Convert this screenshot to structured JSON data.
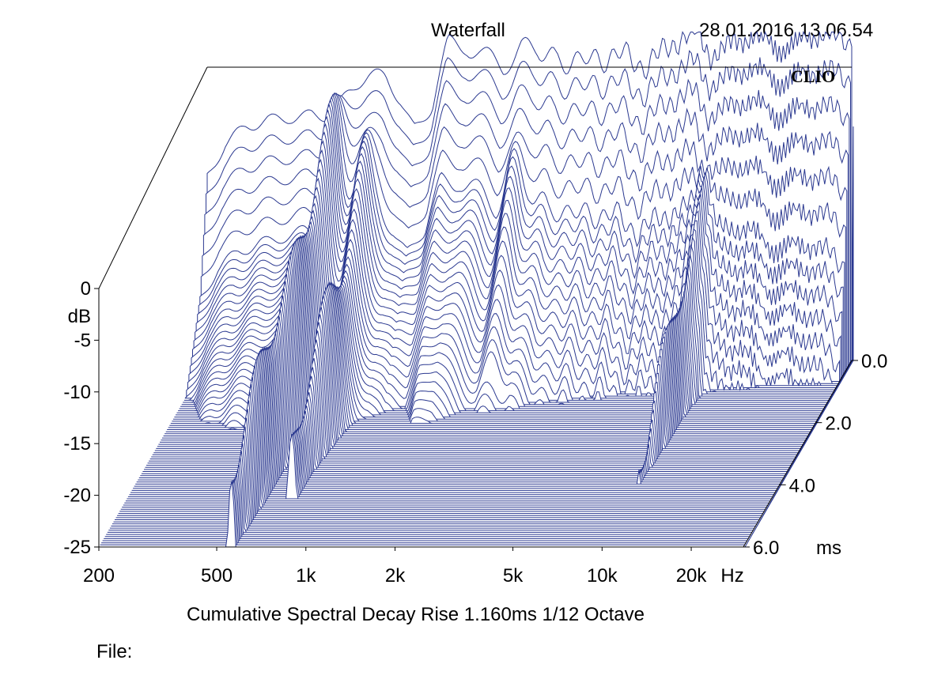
{
  "header": {
    "title": "Waterfall",
    "timestamp": "28.01.2016 13.06.54"
  },
  "footer": {
    "caption": "Cumulative Spectral Decay   Rise 1.160ms   1/12 Octave",
    "file_label": "File:"
  },
  "logo": "CLIO",
  "colors": {
    "trace": "#2b3990",
    "fill": "#2b3990",
    "paper": "#ffffff",
    "axis": "#000000"
  },
  "chart_data": {
    "type": "waterfall",
    "title": "Waterfall",
    "subtitle": "Cumulative Spectral Decay",
    "rise_ms": 1.16,
    "smoothing": "1/12 Octave",
    "x_axis": {
      "label": "Hz",
      "scale": "log",
      "range": [
        200,
        30000
      ],
      "ticks": [
        {
          "value": 200,
          "label": "200"
        },
        {
          "value": 500,
          "label": "500"
        },
        {
          "value": 1000,
          "label": "1k"
        },
        {
          "value": 2000,
          "label": "2k"
        },
        {
          "value": 5000,
          "label": "5k"
        },
        {
          "value": 10000,
          "label": "10k"
        },
        {
          "value": 20000,
          "label": "20k"
        }
      ]
    },
    "y_axis": {
      "label": "dB",
      "range": [
        -25,
        0
      ],
      "ticks": [
        {
          "value": 0,
          "label": "0"
        },
        {
          "value": -5,
          "label": "-5"
        },
        {
          "value": -10,
          "label": "-10"
        },
        {
          "value": -15,
          "label": "-15"
        },
        {
          "value": -20,
          "label": "-20"
        },
        {
          "value": -25,
          "label": "-25"
        }
      ]
    },
    "z_axis": {
      "label": "ms",
      "range": [
        0,
        6
      ],
      "ticks": [
        {
          "value": 0,
          "label": "0.0"
        },
        {
          "value": 2,
          "label": "2.0"
        },
        {
          "value": 4,
          "label": "4.0"
        },
        {
          "value": 6,
          "label": "6.0"
        }
      ]
    },
    "slice_count": 90,
    "initial_response": {
      "freq_hz": [
        200,
        230,
        270,
        320,
        380,
        450,
        520,
        600,
        700,
        800,
        900,
        1000,
        1150,
        1300,
        1500,
        1700,
        2000,
        2300,
        2600,
        3000,
        3500,
        4000,
        5000,
        6000,
        7000,
        8000,
        9000,
        10000,
        12000,
        14000,
        17000,
        20000,
        24000,
        30000
      ],
      "db": [
        -10,
        -7,
        -5.2,
        -4.2,
        -3.6,
        -3.3,
        -3.8,
        -2.5,
        -1.5,
        -1.2,
        -2.5,
        -4.5,
        -3.5,
        1.5,
        2.2,
        1.0,
        0.0,
        1.5,
        2.0,
        0.2,
        0.8,
        0.5,
        1.2,
        0.0,
        1.5,
        2.5,
        3.0,
        1.0,
        2.0,
        2.8,
        1.5,
        2.2,
        3.0,
        2.0
      ]
    },
    "decay_resonances": [
      {
        "freq_hz": 560,
        "level_db": -3,
        "persist_ms": 6
      },
      {
        "freq_hz": 720,
        "level_db": -6,
        "persist_ms": 4.5
      },
      {
        "freq_hz": 2300,
        "level_db": -5,
        "persist_ms": 1.5
      },
      {
        "freq_hz": 10000,
        "level_db": -8,
        "persist_ms": 4.0
      }
    ]
  }
}
